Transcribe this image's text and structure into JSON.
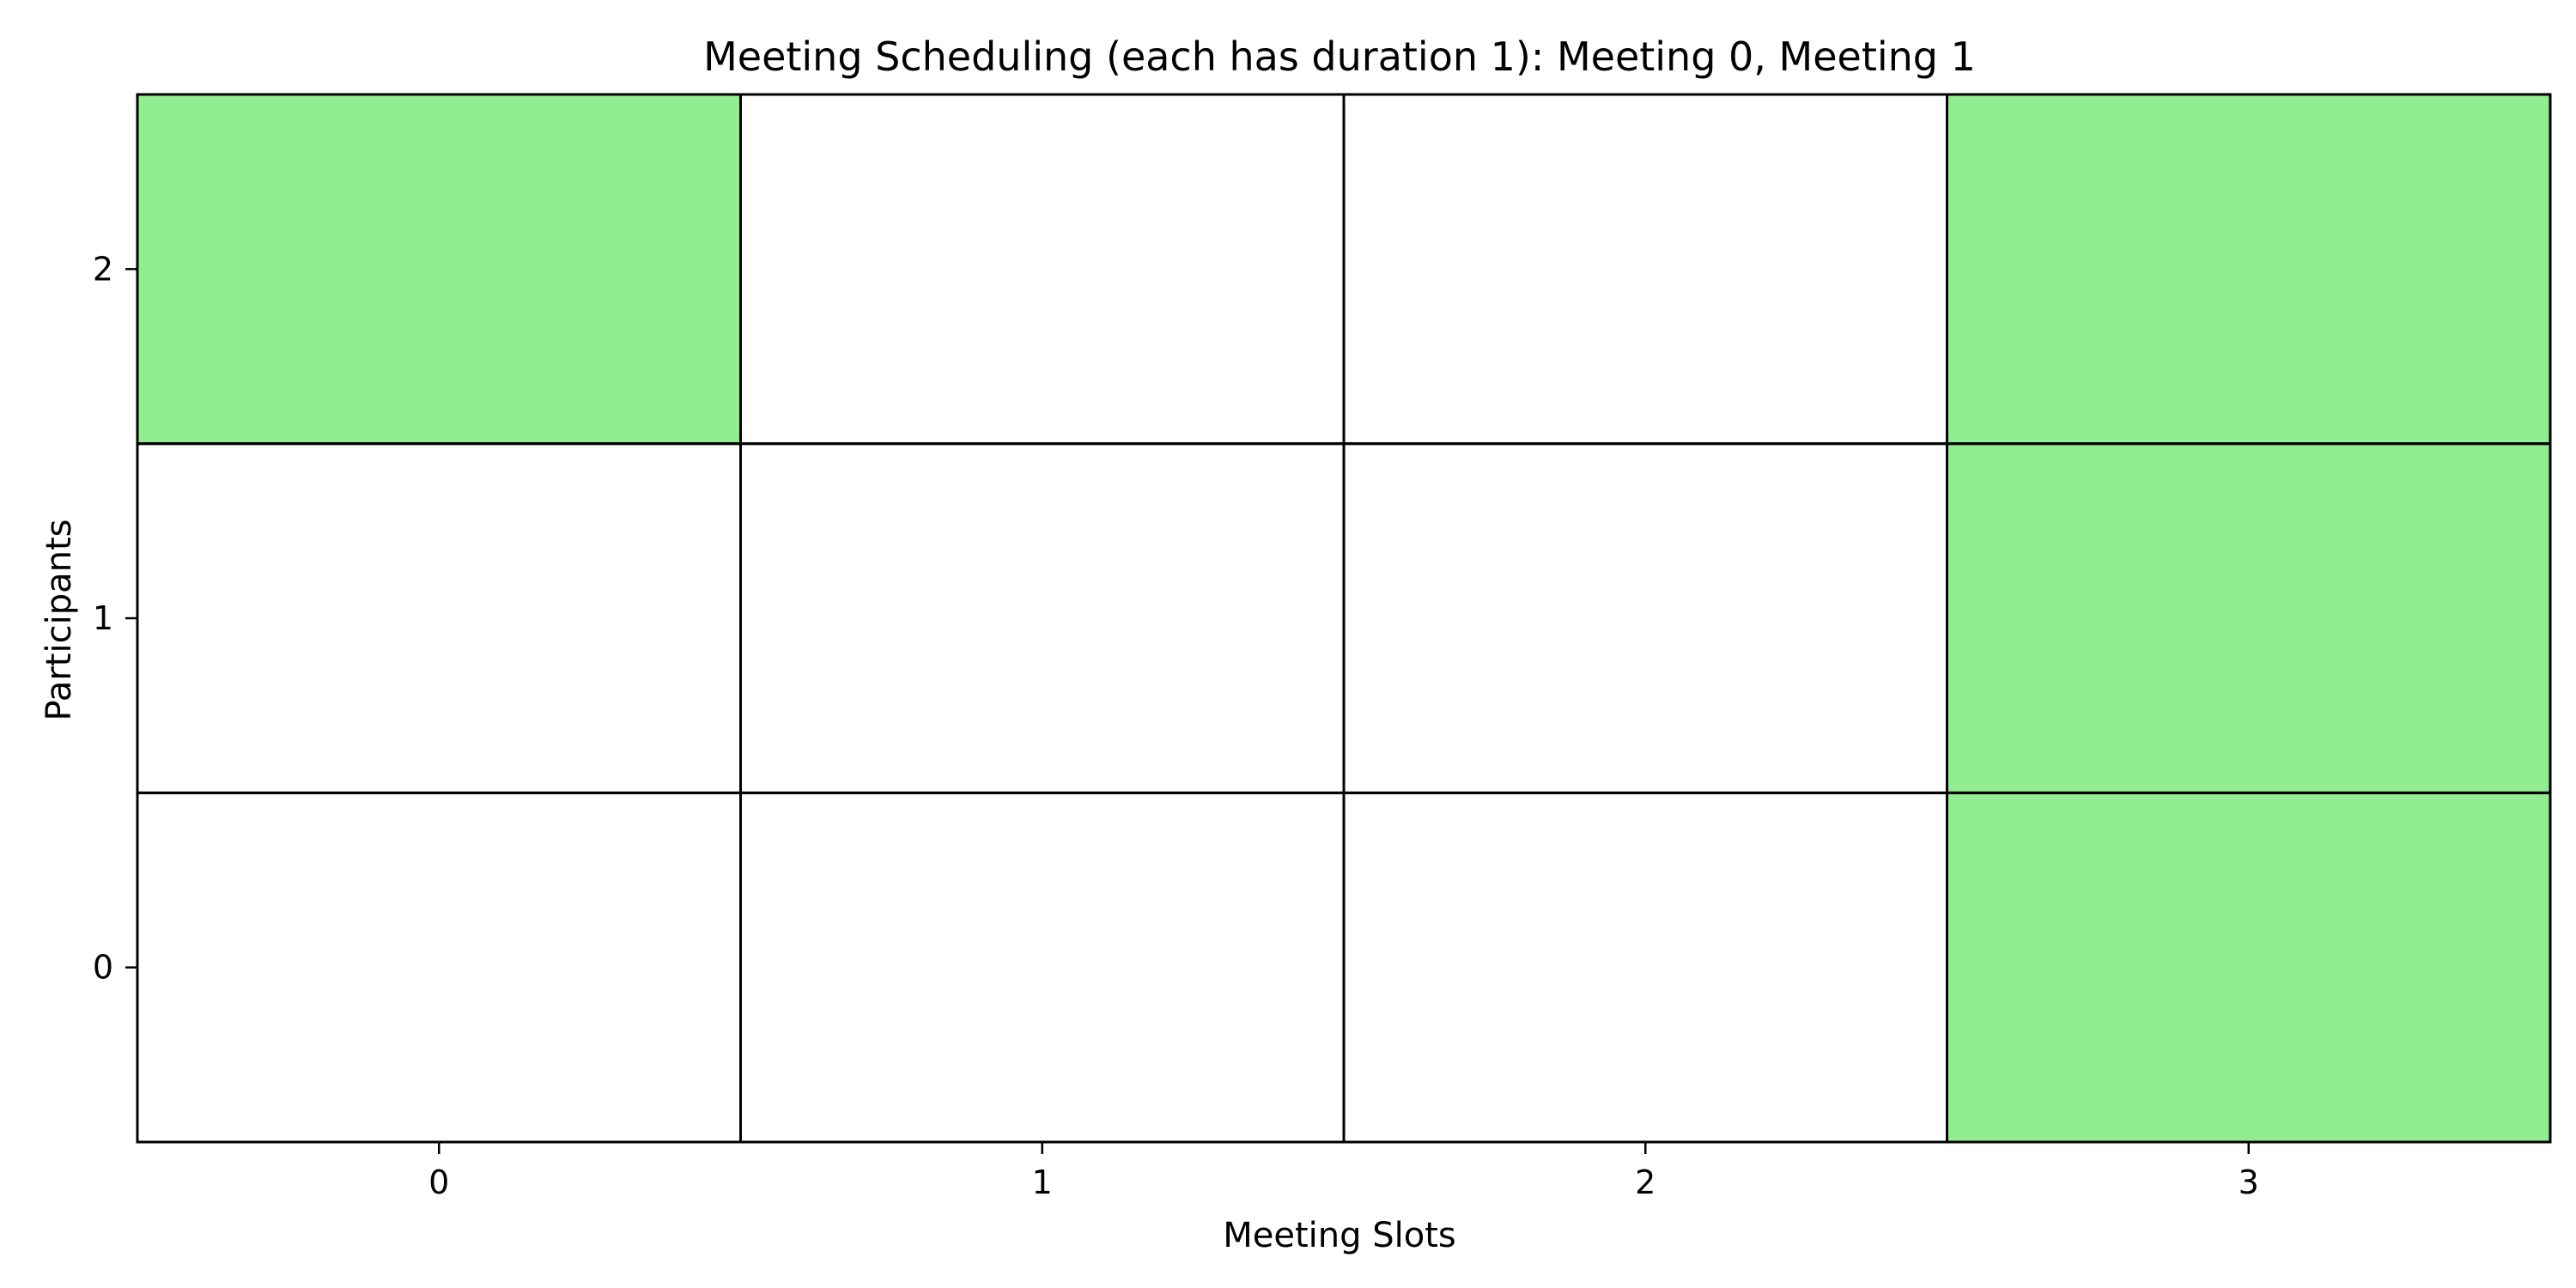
{
  "chart_data": {
    "type": "heatmap",
    "title": "Meeting Scheduling (each has duration 1): Meeting 0, Meeting 1",
    "xlabel": "Meeting Slots",
    "ylabel": "Participants",
    "x_categories": [
      "0",
      "1",
      "2",
      "3"
    ],
    "y_categories": [
      "0",
      "1",
      "2"
    ],
    "cells": [
      {
        "participant": 0,
        "slot": 0,
        "scheduled": false
      },
      {
        "participant": 0,
        "slot": 1,
        "scheduled": false
      },
      {
        "participant": 0,
        "slot": 2,
        "scheduled": false
      },
      {
        "participant": 0,
        "slot": 3,
        "scheduled": true
      },
      {
        "participant": 1,
        "slot": 0,
        "scheduled": false
      },
      {
        "participant": 1,
        "slot": 1,
        "scheduled": false
      },
      {
        "participant": 1,
        "slot": 2,
        "scheduled": false
      },
      {
        "participant": 1,
        "slot": 3,
        "scheduled": true
      },
      {
        "participant": 2,
        "slot": 0,
        "scheduled": true
      },
      {
        "participant": 2,
        "slot": 1,
        "scheduled": false
      },
      {
        "participant": 2,
        "slot": 2,
        "scheduled": false
      },
      {
        "participant": 2,
        "slot": 3,
        "scheduled": true
      }
    ],
    "colors": {
      "scheduled": "#90ee90",
      "free": "#ffffff",
      "grid": "#000000"
    },
    "grid": true,
    "legend": "none"
  }
}
